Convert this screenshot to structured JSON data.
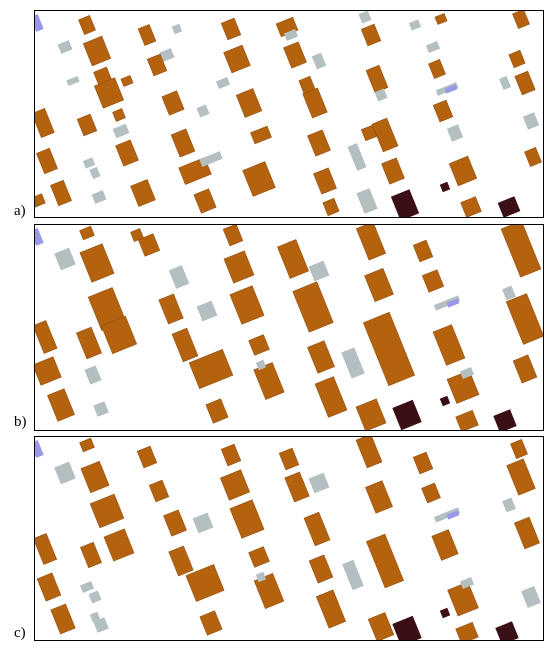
{
  "colors": {
    "building": "#b5620f",
    "building_stroke": "#8a4a0c",
    "gray": "#b3bfc0",
    "blue": "#9a98e6",
    "dark": "#3a1016",
    "border": "#000000",
    "background": "#ffffff"
  },
  "panels": [
    {
      "id": "a",
      "label": "a)"
    },
    {
      "id": "b",
      "label": "b)"
    },
    {
      "id": "c",
      "label": "c)"
    }
  ]
}
